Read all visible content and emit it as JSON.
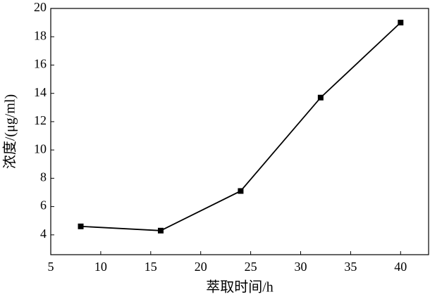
{
  "chart_data": {
    "type": "line",
    "x_label": "萃取时间/h",
    "y_label": "浓度/(μg/ml)",
    "x": [
      8,
      16,
      24,
      32,
      40
    ],
    "series": [
      {
        "color": "#000000",
        "values": [
          4.6,
          4.3,
          7.1,
          13.7,
          19.0
        ]
      }
    ],
    "xlim": [
      5,
      42.8
    ],
    "xticks": [
      5,
      10,
      15,
      20,
      25,
      30,
      35,
      40
    ],
    "ylim": [
      2.6,
      20
    ],
    "yticks": [
      4,
      6,
      8,
      10,
      12,
      14,
      16,
      18,
      20
    ],
    "grid": false,
    "marker": "square"
  }
}
